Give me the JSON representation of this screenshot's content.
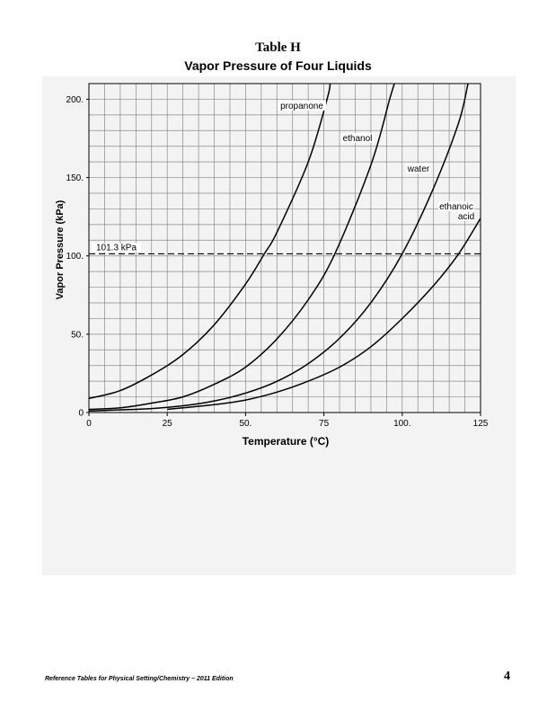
{
  "header": {
    "table_label": "Table H",
    "title": "Vapor Pressure of Four Liquids"
  },
  "footer": {
    "left_text": "Reference Tables for Physical Setting/Chemistry – 2011 Edition",
    "page_number": "4"
  },
  "chart_data": {
    "type": "line",
    "xlabel": "Temperature (°C)",
    "ylabel": "Vapor Pressure (kPa)",
    "xlim": [
      0,
      125
    ],
    "ylim": [
      0,
      210
    ],
    "x_ticks": [
      "0",
      "25",
      "50.",
      "75",
      "100.",
      "125"
    ],
    "y_ticks": [
      "0",
      "50.",
      "100.",
      "150.",
      "200."
    ],
    "grid": true,
    "reference_line": {
      "value": 101.3,
      "label": "101.3 kPa"
    },
    "series": [
      {
        "name": "propanone",
        "points": [
          [
            0,
            9
          ],
          [
            10,
            14
          ],
          [
            20,
            24
          ],
          [
            30,
            37
          ],
          [
            40,
            56
          ],
          [
            50,
            82
          ],
          [
            56,
            101.3
          ],
          [
            60,
            115
          ],
          [
            70,
            160
          ],
          [
            76,
            200
          ],
          [
            77,
            210
          ]
        ]
      },
      {
        "name": "ethanol",
        "points": [
          [
            0,
            2
          ],
          [
            10,
            3
          ],
          [
            20,
            6
          ],
          [
            30,
            10
          ],
          [
            40,
            18
          ],
          [
            50,
            29
          ],
          [
            60,
            47
          ],
          [
            70,
            72
          ],
          [
            78.5,
            101.3
          ],
          [
            90,
            158
          ],
          [
            96,
            200
          ],
          [
            97.5,
            210
          ]
        ]
      },
      {
        "name": "water",
        "points": [
          [
            0,
            1
          ],
          [
            20,
            2.5
          ],
          [
            30,
            4.3
          ],
          [
            40,
            7.4
          ],
          [
            50,
            12.4
          ],
          [
            60,
            19.9
          ],
          [
            70,
            31.2
          ],
          [
            80,
            47.4
          ],
          [
            90,
            70.1
          ],
          [
            100,
            101.3
          ],
          [
            110,
            143.3
          ],
          [
            118,
            185
          ],
          [
            121,
            210
          ]
        ]
      },
      {
        "name": "ethanoic acid",
        "points": [
          [
            25,
            2
          ],
          [
            40,
            5
          ],
          [
            50,
            8
          ],
          [
            60,
            13
          ],
          [
            70,
            20
          ],
          [
            80,
            29
          ],
          [
            90,
            42
          ],
          [
            100,
            60
          ],
          [
            110,
            81
          ],
          [
            118,
            101.3
          ],
          [
            125,
            124
          ]
        ]
      }
    ],
    "series_labels": [
      "propanone",
      "ethanol",
      "water",
      "ethanoic",
      "acid"
    ]
  }
}
